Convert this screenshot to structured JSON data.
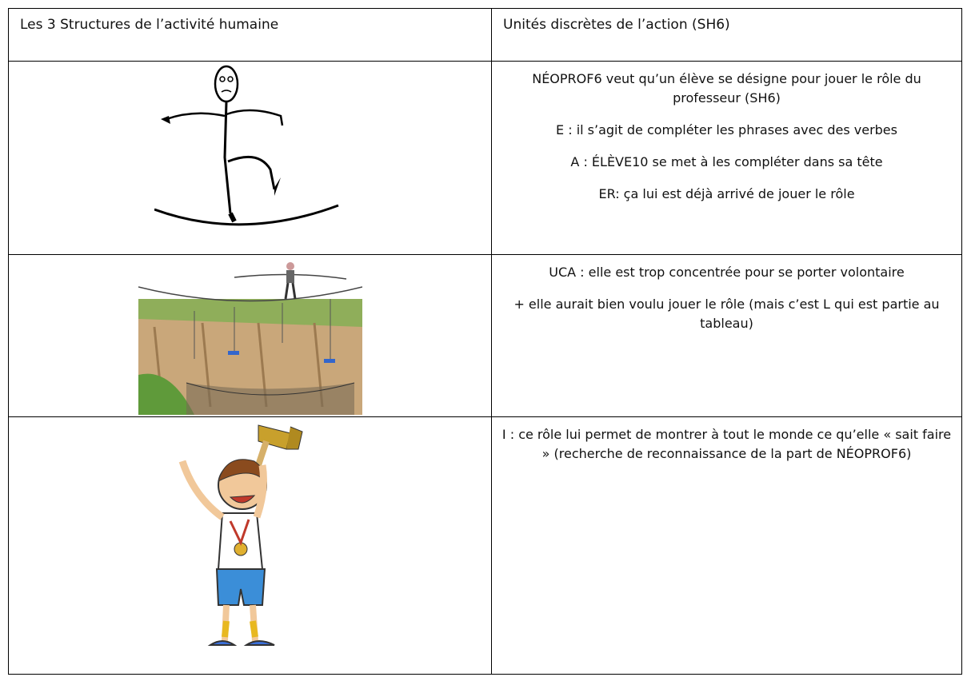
{
  "table": {
    "header": [
      "Les 3 Structures de l’activité humaine",
      "Unités discrètes de l’action (SH6)"
    ],
    "rows": [
      {
        "paragraphs": [
          "NÉOPROF6 veut qu’un élève se désigne pour jouer le rôle du professeur (SH6)",
          "E : il s’agit de compléter les phrases avec des verbes",
          "A : ÉLÈVE10 se met à les compléter dans sa tête",
          "ER: ça lui est déjà arrivé de jouer le rôle"
        ]
      },
      {
        "paragraphs": [
          "UCA : elle est trop concentrée pour se porter volontaire",
          "+ elle aurait bien voulu jouer le rôle (mais c’est L qui est partie au tableau)"
        ]
      },
      {
        "paragraphs": [
          "I : ce rôle lui permet de montrer à tout le monde ce qu’elle « sait faire » (recherche de reconnaissance de la part de NÉOPROF6)"
        ]
      }
    ]
  }
}
